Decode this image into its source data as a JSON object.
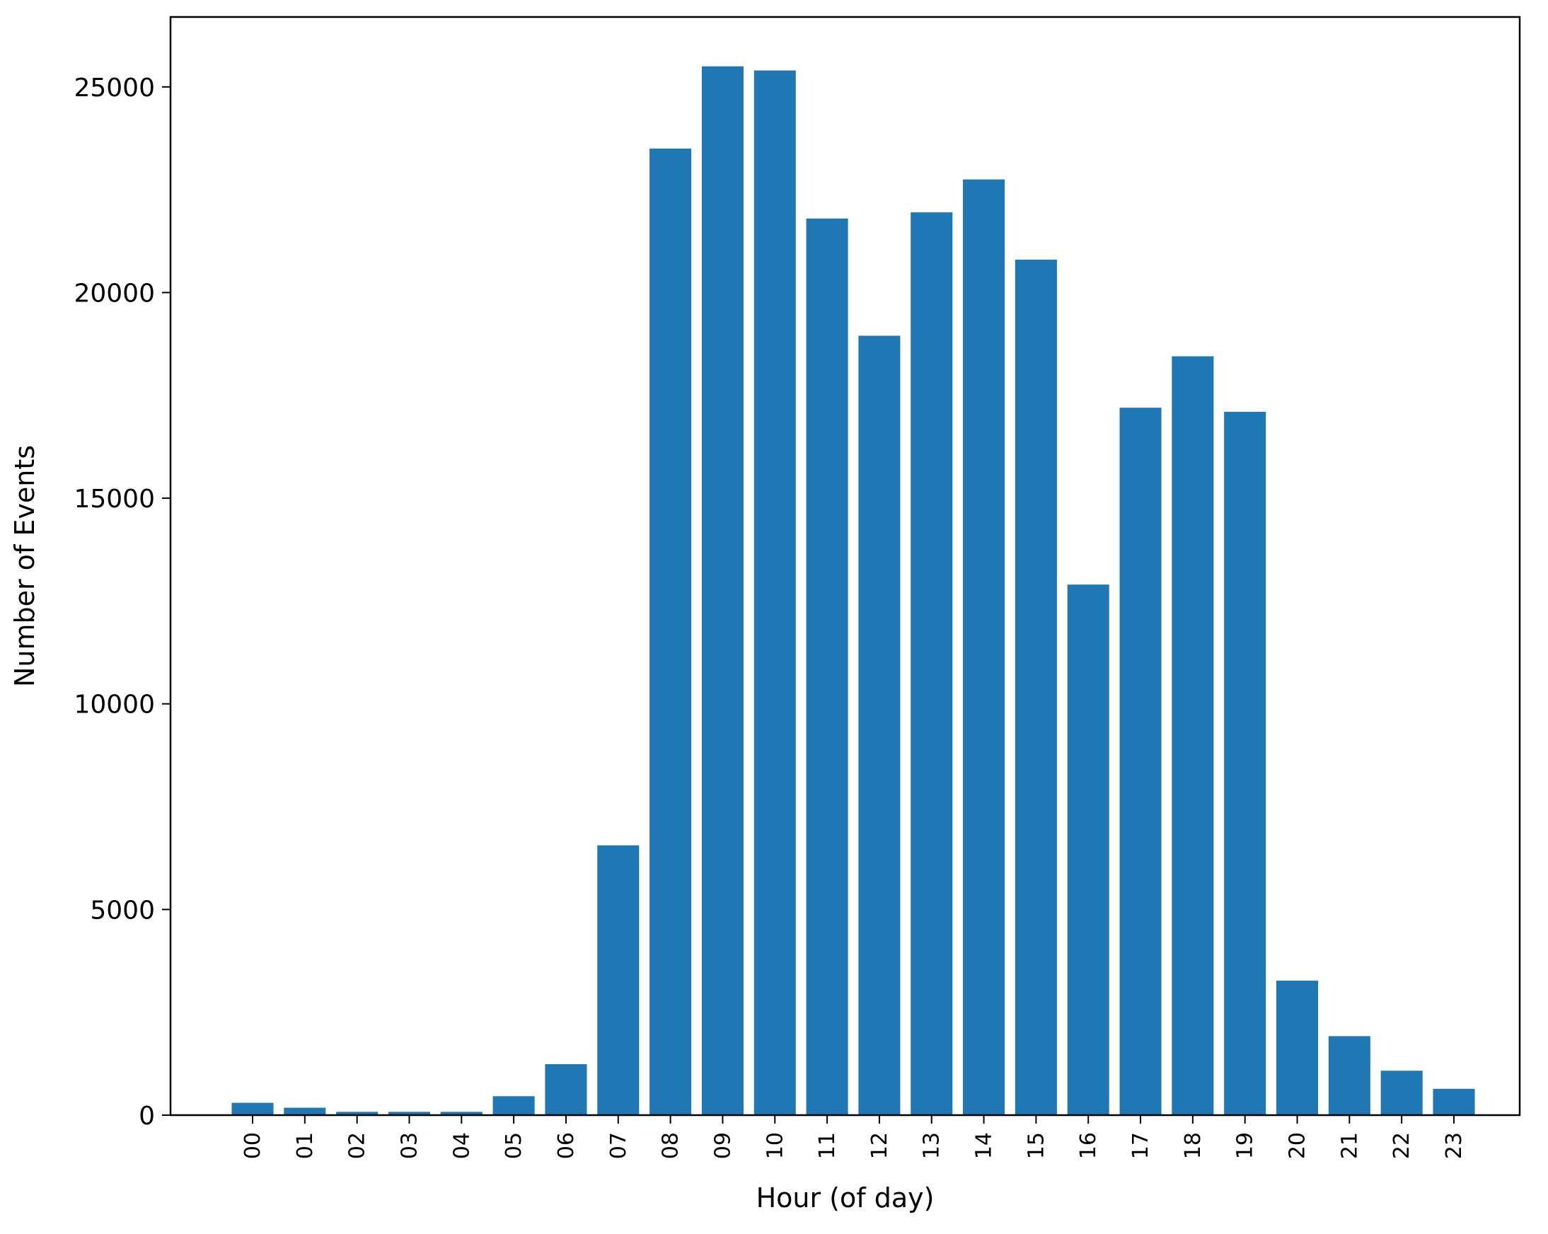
{
  "chart_data": {
    "type": "bar",
    "title": "",
    "xlabel": "Hour (of day)",
    "ylabel": "Number of Events",
    "categories": [
      "00",
      "01",
      "02",
      "03",
      "04",
      "05",
      "06",
      "07",
      "08",
      "09",
      "10",
      "11",
      "12",
      "13",
      "14",
      "15",
      "16",
      "17",
      "18",
      "19",
      "20",
      "21",
      "22",
      "23"
    ],
    "values": [
      300,
      180,
      80,
      80,
      80,
      460,
      1240,
      6560,
      23500,
      25500,
      25400,
      21800,
      18950,
      21950,
      22750,
      20800,
      12900,
      17200,
      18450,
      17100,
      3270,
      1920,
      1080,
      640
    ],
    "ylim": [
      0,
      26700
    ],
    "yticks": [
      0,
      5000,
      10000,
      15000,
      20000,
      25000
    ],
    "ytick_labels": [
      "0",
      "5000",
      "10000",
      "15000",
      "20000",
      "25000"
    ],
    "bar_color": "#1f77b4",
    "grid": false,
    "legend": "none"
  }
}
